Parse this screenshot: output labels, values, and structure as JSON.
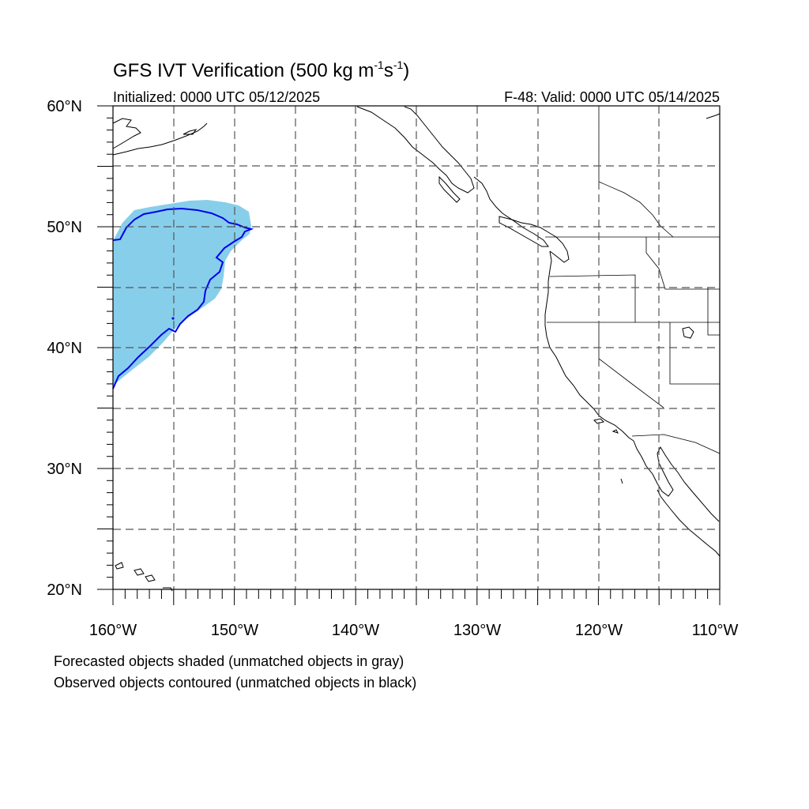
{
  "title": {
    "main_prefix": "GFS IVT Verification (500 kg m",
    "exp1": "-1",
    "mid": "s",
    "exp2": "-1",
    "suffix": ")"
  },
  "subtitle": {
    "initialized": "Initialized: 0000 UTC 05/12/2025",
    "valid": "F-48: Valid: 0000 UTC 05/14/2025"
  },
  "map": {
    "lon_range": [
      -160,
      -110
    ],
    "lat_range": [
      20,
      60
    ],
    "lon_ticks": [
      {
        "value": -160,
        "label": "160°W"
      },
      {
        "value": -150,
        "label": "150°W"
      },
      {
        "value": -140,
        "label": "140°W"
      },
      {
        "value": -130,
        "label": "130°W"
      },
      {
        "value": -120,
        "label": "120°W"
      },
      {
        "value": -110,
        "label": "110°W"
      }
    ],
    "lat_ticks": [
      {
        "value": 60,
        "label": "60°N"
      },
      {
        "value": 50,
        "label": "50°N"
      },
      {
        "value": 40,
        "label": "40°N"
      },
      {
        "value": 30,
        "label": "30°N"
      },
      {
        "value": 20,
        "label": "20°N"
      }
    ],
    "forecast_fill_color": "#87ceeb",
    "observed_contour_color": "#0000ee"
  },
  "notes": {
    "line1": "Forecasted objects shaded (unmatched objects in gray)",
    "line2": "Observed objects contoured (unmatched objects in black)"
  }
}
